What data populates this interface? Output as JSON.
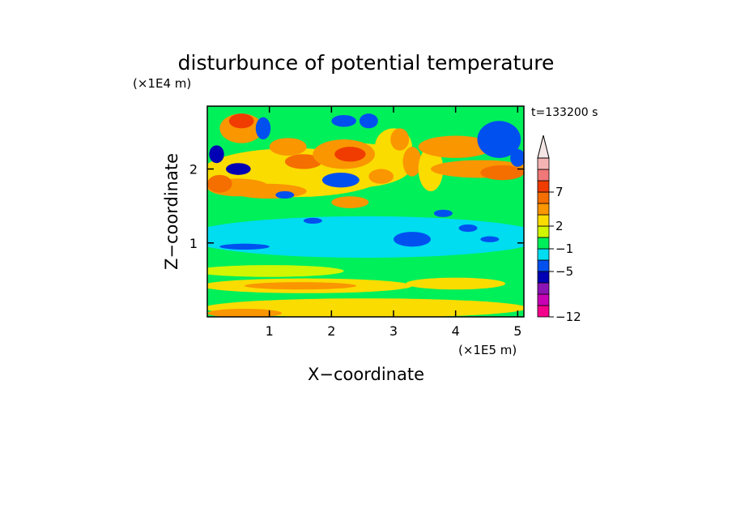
{
  "chart_data": {
    "type": "heatmap",
    "title": "disturbunce of potential temperature",
    "xlabel": "X−coordinate",
    "ylabel": "Z−coordinate",
    "x_unit": "(×1E5 m)",
    "y_unit": "(×1E4 m)",
    "time_label": "t=133200 s",
    "xlim": [
      0,
      5.1
    ],
    "ylim": [
      0,
      2.85
    ],
    "x_ticks": [
      1,
      2,
      3,
      4,
      5
    ],
    "y_ticks": [
      1,
      2
    ],
    "x_tick_labels": [
      "1",
      "2",
      "3",
      "4",
      "5"
    ],
    "y_tick_labels": [
      "1",
      "2"
    ],
    "colorbar": {
      "bins": [
        {
          "color": "#f5008c"
        },
        {
          "color": "#c800b4"
        },
        {
          "color": "#8c14b4"
        },
        {
          "color": "#0000b4"
        },
        {
          "color": "#0050f0"
        },
        {
          "color": "#00dcf0"
        },
        {
          "color": "#00f05a"
        },
        {
          "color": "#d2f500"
        },
        {
          "color": "#fadc00"
        },
        {
          "color": "#fa9600"
        },
        {
          "color": "#f56e00"
        },
        {
          "color": "#f03c00"
        },
        {
          "color": "#f07878"
        },
        {
          "color": "#f5b4b4"
        }
      ],
      "labels": [
        {
          "text": "−12",
          "bin_edge": 0
        },
        {
          "text": "−5",
          "bin_edge": 4
        },
        {
          "text": "−1",
          "bin_edge": 6
        },
        {
          "text": "2",
          "bin_edge": 8
        },
        {
          "text": "7",
          "bin_edge": 11
        }
      ],
      "extend": "max",
      "extend_color": "#f5e6e6"
    },
    "field_colors": {
      "background": "#00f05a",
      "cyan_band": "#00dcf0",
      "yellow": "#fadc00",
      "light_yellow": "#d2f500",
      "orange": "#fa9600",
      "dark_orange": "#f56e00",
      "red": "#f03c00",
      "blue": "#0050f0",
      "navy": "#0000b4"
    }
  }
}
